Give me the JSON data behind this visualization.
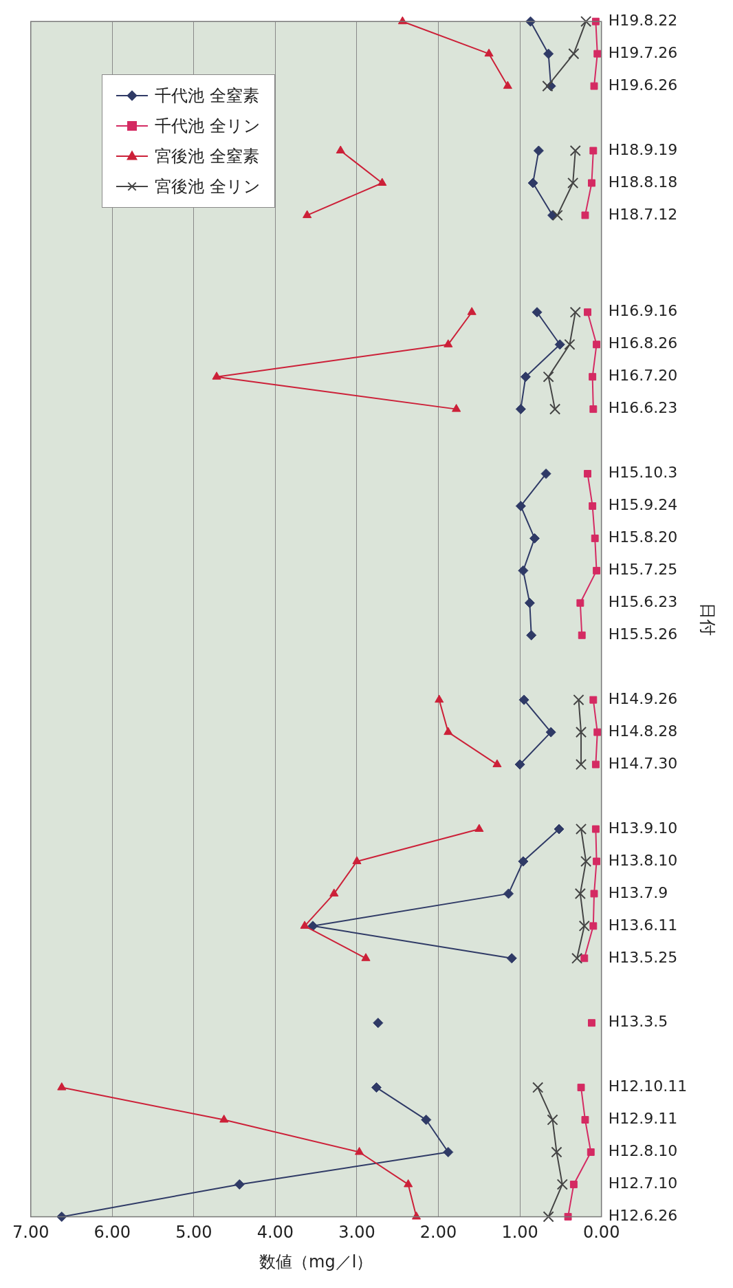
{
  "chart_data": {
    "type": "line",
    "orientation": "horizontal",
    "xlabel": "数値（mg／l）",
    "ylabel": "日付",
    "categories": [
      "H19.8.22",
      "H19.7.26",
      "H19.6.26",
      null,
      "H18.9.19",
      "H18.8.18",
      "H18.7.12",
      null,
      null,
      "H16.9.16",
      "H16.8.26",
      "H16.7.20",
      "H16.6.23",
      null,
      "H15.10.3",
      "H15.9.24",
      "H15.8.20",
      "H15.7.25",
      "H15.6.23",
      "H15.5.26",
      null,
      "H14.9.26",
      "H14.8.28",
      "H14.7.30",
      null,
      "H13.9.10",
      "H13.8.10",
      "H13.7.9",
      "H13.6.11",
      "H13.5.25",
      null,
      "H13.3.5",
      null,
      "H12.10.11",
      "H12.9.11",
      "H12.8.10",
      "H12.7.10",
      "H12.6.26"
    ],
    "series": [
      {
        "name": "千代池 全窒素",
        "color": "#2f3a66",
        "marker": "diamond",
        "values": [
          0.87,
          0.65,
          0.62,
          null,
          0.77,
          0.84,
          0.6,
          null,
          null,
          0.79,
          0.51,
          0.93,
          0.99,
          null,
          0.68,
          0.99,
          0.82,
          0.96,
          0.88,
          0.86,
          null,
          0.95,
          0.62,
          1.0,
          null,
          0.52,
          0.96,
          1.14,
          3.54,
          1.1,
          null,
          2.74,
          null,
          2.76,
          2.15,
          1.88,
          4.44,
          6.62
        ]
      },
      {
        "name": "千代池 全リン",
        "color": "#d42a62",
        "marker": "square",
        "values": [
          0.07,
          0.05,
          0.09,
          null,
          0.1,
          0.12,
          0.2,
          null,
          null,
          0.17,
          0.06,
          0.11,
          0.1,
          null,
          0.17,
          0.11,
          0.08,
          0.06,
          0.26,
          0.24,
          null,
          0.1,
          0.05,
          0.07,
          null,
          0.07,
          0.06,
          0.09,
          0.1,
          0.21,
          null,
          0.12,
          null,
          0.25,
          0.2,
          0.13,
          0.34,
          0.41
        ]
      },
      {
        "name": "宮後池 全窒素",
        "color": "#cc2038",
        "marker": "triangle",
        "values": [
          2.44,
          1.38,
          1.15,
          null,
          3.2,
          2.69,
          3.61,
          null,
          null,
          1.59,
          1.88,
          4.72,
          1.78,
          null,
          null,
          null,
          null,
          null,
          null,
          null,
          null,
          1.99,
          1.88,
          1.28,
          null,
          1.5,
          3.0,
          3.28,
          3.64,
          2.89,
          null,
          null,
          null,
          6.62,
          4.63,
          2.97,
          2.37,
          2.27
        ]
      },
      {
        "name": "宮後池 全リン",
        "color": "#444444",
        "marker": "cross",
        "values": [
          0.19,
          0.34,
          0.66,
          null,
          0.32,
          0.35,
          0.54,
          null,
          null,
          0.32,
          0.39,
          0.65,
          0.57,
          null,
          null,
          null,
          null,
          null,
          null,
          null,
          null,
          0.28,
          0.25,
          0.25,
          null,
          0.25,
          0.19,
          0.26,
          0.21,
          0.3,
          null,
          null,
          null,
          0.78,
          0.6,
          0.55,
          0.48,
          0.65
        ]
      }
    ],
    "xlim": [
      7,
      0
    ],
    "xticks": [
      {
        "value": 7,
        "label": "7.00"
      },
      {
        "value": 6,
        "label": "6.00"
      },
      {
        "value": 5,
        "label": "5.00"
      },
      {
        "value": 4,
        "label": "4.00"
      },
      {
        "value": 3,
        "label": "3.00"
      },
      {
        "value": 2,
        "label": "2.00"
      },
      {
        "value": 1,
        "label": "1.00"
      },
      {
        "value": 0,
        "label": "0.00"
      }
    ],
    "grid": "x",
    "legend": "top left"
  }
}
